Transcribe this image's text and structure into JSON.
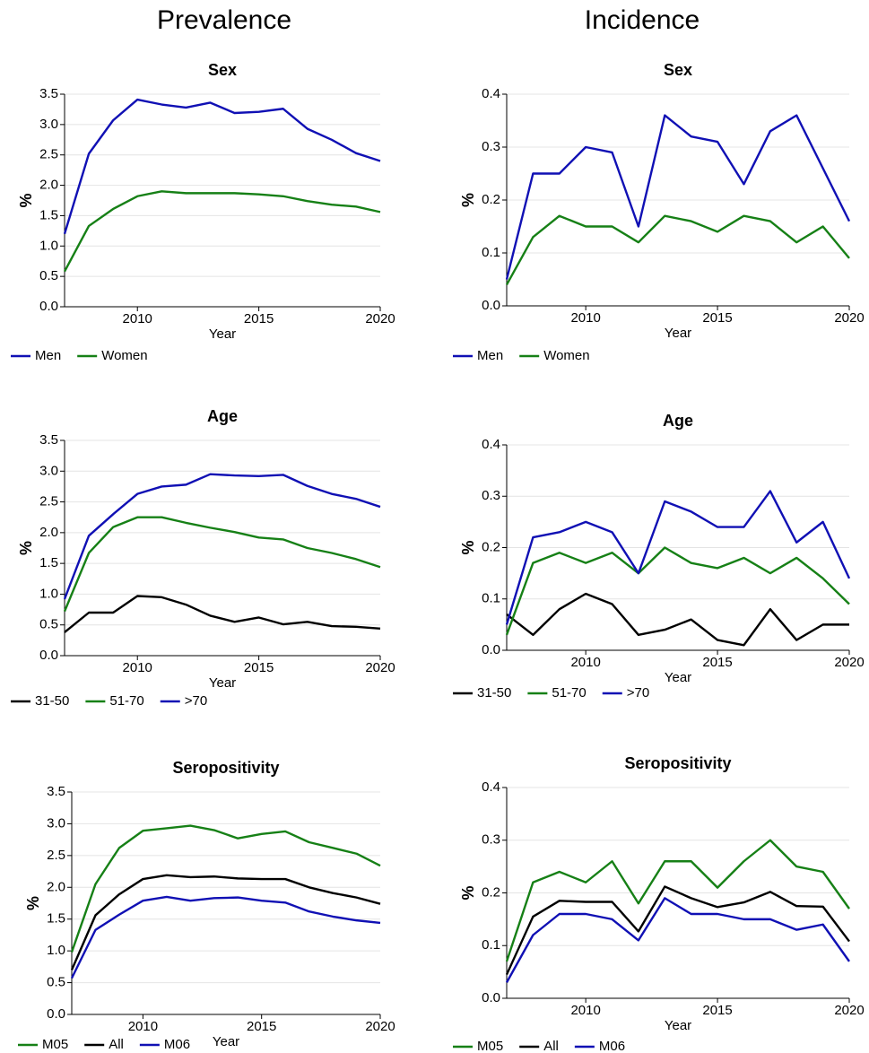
{
  "headers": [
    "Prevalence",
    "Incidence"
  ],
  "chart_data": [
    {
      "type": "line",
      "title": "Sex",
      "x_label": "Year",
      "y_label": "%",
      "x": [
        2007,
        2008,
        2009,
        2010,
        2011,
        2012,
        2013,
        2014,
        2015,
        2016,
        2017,
        2018,
        2019,
        2020
      ],
      "xlim": [
        2007,
        2020
      ],
      "xticks": [
        2010,
        2015,
        2020
      ],
      "ylim": [
        0,
        3.5
      ],
      "yticks": [
        {
          "value": 0,
          "label": "0.0"
        },
        0.5,
        {
          "value": 1,
          "label": "1.0"
        },
        1.5,
        {
          "value": 2,
          "label": "2.0"
        },
        2.5,
        {
          "value": 3,
          "label": "3.0"
        },
        3.5
      ],
      "grid": true,
      "series": [
        {
          "name": "Men",
          "color": "#1010b4",
          "values": [
            1.2,
            2.52,
            3.07,
            3.41,
            3.33,
            3.28,
            3.36,
            3.19,
            3.21,
            3.26,
            2.93,
            2.75,
            2.53,
            2.4
          ]
        },
        {
          "name": "Women",
          "color": "#168016",
          "values": [
            0.58,
            1.33,
            1.61,
            1.82,
            1.9,
            1.87,
            1.87,
            1.87,
            1.85,
            1.82,
            1.74,
            1.68,
            1.65,
            1.56
          ]
        }
      ]
    },
    {
      "type": "line",
      "title": "Sex",
      "x_label": "Year",
      "y_label": "%",
      "x": [
        2007,
        2008,
        2009,
        2010,
        2011,
        2012,
        2013,
        2014,
        2015,
        2016,
        2017,
        2018,
        2019,
        2020
      ],
      "xlim": [
        2007,
        2020
      ],
      "xticks": [
        2010,
        2015,
        2020
      ],
      "ylim": [
        0,
        0.4
      ],
      "yticks": [
        {
          "value": 0,
          "label": "0.0"
        },
        0.1,
        0.2,
        0.3,
        0.4
      ],
      "grid": true,
      "series": [
        {
          "name": "Men",
          "color": "#1010b4",
          "values": [
            0.05,
            0.25,
            0.25,
            0.3,
            0.29,
            0.15,
            0.36,
            0.32,
            0.31,
            0.23,
            0.33,
            0.36,
            0.26,
            0.16
          ]
        },
        {
          "name": "Women",
          "color": "#168016",
          "values": [
            0.04,
            0.13,
            0.17,
            0.15,
            0.15,
            0.12,
            0.17,
            0.16,
            0.14,
            0.17,
            0.16,
            0.12,
            0.15,
            0.09
          ]
        }
      ]
    },
    {
      "type": "line",
      "title": "Age",
      "x_label": "Year",
      "y_label": "%",
      "x": [
        2007,
        2008,
        2009,
        2010,
        2011,
        2012,
        2013,
        2014,
        2015,
        2016,
        2017,
        2018,
        2019,
        2020
      ],
      "xlim": [
        2007,
        2020
      ],
      "xticks": [
        2010,
        2015,
        2020
      ],
      "ylim": [
        0,
        3.5
      ],
      "yticks": [
        {
          "value": 0,
          "label": "0.0"
        },
        0.5,
        {
          "value": 1,
          "label": "1.0"
        },
        1.5,
        {
          "value": 2,
          "label": "2.0"
        },
        2.5,
        {
          "value": 3,
          "label": "3.0"
        },
        3.5
      ],
      "grid": true,
      "series": [
        {
          "name": "31-50",
          "color": "#000000",
          "values": [
            0.38,
            0.7,
            0.7,
            0.97,
            0.95,
            0.83,
            0.65,
            0.55,
            0.62,
            0.51,
            0.55,
            0.48,
            0.47,
            0.44
          ]
        },
        {
          "name": "51-70",
          "color": "#168016",
          "values": [
            0.72,
            1.67,
            2.09,
            2.25,
            2.25,
            2.16,
            2.08,
            2.01,
            1.92,
            1.89,
            1.75,
            1.67,
            1.57,
            1.44
          ]
        },
        {
          "name": ">70",
          "color": "#1010b4",
          "values": [
            0.92,
            1.95,
            2.3,
            2.63,
            2.75,
            2.78,
            2.95,
            2.93,
            2.92,
            2.94,
            2.76,
            2.63,
            2.55,
            2.42
          ]
        }
      ]
    },
    {
      "type": "line",
      "title": "Age",
      "x_label": "Year",
      "y_label": "%",
      "x": [
        2007,
        2008,
        2009,
        2010,
        2011,
        2012,
        2013,
        2014,
        2015,
        2016,
        2017,
        2018,
        2019,
        2020
      ],
      "xlim": [
        2007,
        2020
      ],
      "xticks": [
        2010,
        2015,
        2020
      ],
      "ylim": [
        0,
        0.4
      ],
      "yticks": [
        {
          "value": 0,
          "label": "0.0"
        },
        0.1,
        0.2,
        0.3,
        0.4
      ],
      "grid": true,
      "series": [
        {
          "name": "31-50",
          "color": "#000000",
          "values": [
            0.07,
            0.03,
            0.08,
            0.11,
            0.09,
            0.03,
            0.04,
            0.06,
            0.02,
            0.01,
            0.08,
            0.02,
            0.05,
            0.05
          ]
        },
        {
          "name": "51-70",
          "color": "#168016",
          "values": [
            0.03,
            0.17,
            0.19,
            0.17,
            0.19,
            0.15,
            0.2,
            0.17,
            0.16,
            0.18,
            0.15,
            0.18,
            0.14,
            0.09
          ]
        },
        {
          "name": ">70",
          "color": "#1010b4",
          "values": [
            0.05,
            0.22,
            0.23,
            0.25,
            0.23,
            0.15,
            0.29,
            0.27,
            0.24,
            0.24,
            0.31,
            0.21,
            0.25,
            0.14
          ]
        }
      ]
    },
    {
      "type": "line",
      "title": "Seropositivity",
      "x_label": "Year",
      "y_label": "%",
      "x": [
        2007,
        2008,
        2009,
        2010,
        2011,
        2012,
        2013,
        2014,
        2015,
        2016,
        2017,
        2018,
        2019,
        2020
      ],
      "xlim": [
        2007,
        2020
      ],
      "xticks": [
        2010,
        2015,
        2020
      ],
      "ylim": [
        0,
        3.5
      ],
      "yticks": [
        {
          "value": 0,
          "label": "0.0"
        },
        0.5,
        {
          "value": 1,
          "label": "1.0"
        },
        1.5,
        {
          "value": 2,
          "label": "2.0"
        },
        2.5,
        {
          "value": 3,
          "label": "3.0"
        },
        3.5
      ],
      "grid": true,
      "series": [
        {
          "name": "M05",
          "color": "#168016",
          "values": [
            0.98,
            2.05,
            2.62,
            2.89,
            2.93,
            2.97,
            2.9,
            2.77,
            2.84,
            2.88,
            2.71,
            2.62,
            2.53,
            2.34
          ]
        },
        {
          "name": "All",
          "color": "#000000",
          "values": [
            0.7,
            1.56,
            1.89,
            2.13,
            2.19,
            2.16,
            2.17,
            2.14,
            2.13,
            2.13,
            2.0,
            1.91,
            1.84,
            1.74
          ]
        },
        {
          "name": "M06",
          "color": "#1010b4",
          "values": [
            0.57,
            1.33,
            1.57,
            1.79,
            1.85,
            1.79,
            1.83,
            1.84,
            1.79,
            1.76,
            1.62,
            1.54,
            1.48,
            1.44
          ]
        }
      ]
    },
    {
      "type": "line",
      "title": "Seropositivity",
      "x_label": "Year",
      "y_label": "%",
      "x": [
        2007,
        2008,
        2009,
        2010,
        2011,
        2012,
        2013,
        2014,
        2015,
        2016,
        2017,
        2018,
        2019,
        2020
      ],
      "xlim": [
        2007,
        2020
      ],
      "xticks": [
        2010,
        2015,
        2020
      ],
      "ylim": [
        0,
        0.4
      ],
      "yticks": [
        {
          "value": 0,
          "label": "0.0"
        },
        0.1,
        0.2,
        0.3,
        0.4
      ],
      "grid": true,
      "series": [
        {
          "name": "M05",
          "color": "#168016",
          "values": [
            0.07,
            0.22,
            0.24,
            0.22,
            0.26,
            0.18,
            0.26,
            0.26,
            0.21,
            0.26,
            0.3,
            0.25,
            0.24,
            0.17
          ]
        },
        {
          "name": "All",
          "color": "#000000",
          "values": [
            0.045,
            0.155,
            0.185,
            0.183,
            0.183,
            0.127,
            0.212,
            0.19,
            0.173,
            0.182,
            0.202,
            0.175,
            0.174,
            0.108
          ]
        },
        {
          "name": "M06",
          "color": "#1010b4",
          "values": [
            0.03,
            0.12,
            0.16,
            0.16,
            0.15,
            0.11,
            0.19,
            0.16,
            0.16,
            0.15,
            0.15,
            0.13,
            0.14,
            0.07
          ]
        }
      ]
    }
  ]
}
